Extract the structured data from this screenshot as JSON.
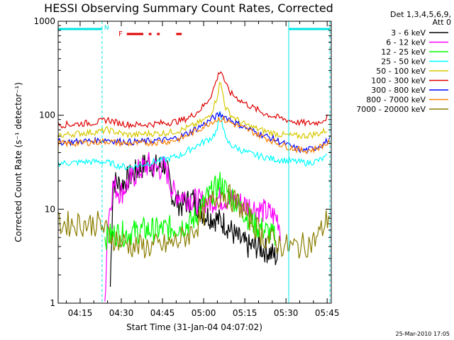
{
  "chart_data": {
    "type": "line",
    "title": "HESSI Observing Summary Count Rates, Corrected",
    "xlabel": "Start Time (31-Jan-04 04:07:02)",
    "ylabel": "Corrected Count Rate (s⁻¹ detector⁻¹)",
    "yscale": "log",
    "ylim": [
      1,
      1000
    ],
    "xlim_minutes": [
      7.0,
      106.5
    ],
    "xticks": [
      {
        "label": "04:15",
        "m": 15
      },
      {
        "label": "04:30",
        "m": 30
      },
      {
        "label": "04:45",
        "m": 45
      },
      {
        "label": "05:00",
        "m": 60
      },
      {
        "label": "05:15",
        "m": 75
      },
      {
        "label": "05:30",
        "m": 90
      },
      {
        "label": "05:45",
        "m": 105
      }
    ],
    "yticks": [
      {
        "label": "1",
        "v": 1
      },
      {
        "label": "10",
        "v": 10
      },
      {
        "label": "100",
        "v": 100
      },
      {
        "label": "1000",
        "v": 1000
      }
    ],
    "legend_placement": "right",
    "legend_header": [
      "Det 1,3,4,5,6,9,",
      "Att 0"
    ],
    "series": [
      {
        "name": "3 - 6 keV",
        "color": "#000000",
        "points": [
          [
            26,
            1.5
          ],
          [
            27,
            20
          ],
          [
            30,
            18
          ],
          [
            33,
            22
          ],
          [
            36,
            26
          ],
          [
            40,
            32
          ],
          [
            43,
            28
          ],
          [
            46,
            30
          ],
          [
            49,
            13
          ],
          [
            52,
            11
          ],
          [
            56,
            13
          ],
          [
            60,
            9
          ],
          [
            64,
            8
          ],
          [
            68,
            7
          ],
          [
            72,
            5
          ],
          [
            76,
            4
          ],
          [
            80,
            4
          ],
          [
            84,
            3.5
          ],
          [
            87,
            3
          ]
        ]
      },
      {
        "name": "6 - 12 keV",
        "color": "#ff00ff",
        "points": [
          [
            24,
            1
          ],
          [
            25,
            7
          ],
          [
            27,
            18
          ],
          [
            30,
            15
          ],
          [
            33,
            20
          ],
          [
            36,
            25
          ],
          [
            40,
            30
          ],
          [
            43,
            27
          ],
          [
            46,
            28
          ],
          [
            49,
            15
          ],
          [
            52,
            14
          ],
          [
            55,
            13
          ],
          [
            58,
            12
          ],
          [
            62,
            12
          ],
          [
            65,
            13
          ],
          [
            68,
            13
          ],
          [
            72,
            12
          ],
          [
            76,
            11
          ],
          [
            80,
            10
          ],
          [
            84,
            9
          ],
          [
            87,
            8
          ],
          [
            88,
            6
          ]
        ]
      },
      {
        "name": "12 - 25 keV",
        "color": "#00ff00",
        "points": [
          [
            24,
            5
          ],
          [
            28,
            5.5
          ],
          [
            32,
            5.5
          ],
          [
            38,
            6
          ],
          [
            44,
            6
          ],
          [
            50,
            6.5
          ],
          [
            55,
            7
          ],
          [
            58,
            9
          ],
          [
            61,
            13
          ],
          [
            64,
            16
          ],
          [
            66,
            19
          ],
          [
            68,
            16
          ],
          [
            71,
            13
          ],
          [
            74,
            10
          ],
          [
            78,
            7
          ],
          [
            82,
            6
          ],
          [
            84,
            5.5
          ],
          [
            86,
            5
          ]
        ]
      },
      {
        "name": "25 - 50 keV",
        "color": "#00ffff",
        "points": [
          [
            7,
            31
          ],
          [
            12,
            31
          ],
          [
            17,
            32
          ],
          [
            22,
            32
          ],
          [
            26,
            31
          ],
          [
            29,
            29
          ],
          [
            32,
            28
          ],
          [
            36,
            29
          ],
          [
            40,
            31
          ],
          [
            44,
            33
          ],
          [
            48,
            35
          ],
          [
            52,
            38
          ],
          [
            56,
            45
          ],
          [
            60,
            52
          ],
          [
            63,
            58
          ],
          [
            65,
            70
          ],
          [
            66,
            112
          ],
          [
            67,
            80
          ],
          [
            68,
            55
          ],
          [
            70,
            48
          ],
          [
            74,
            42
          ],
          [
            78,
            38
          ],
          [
            82,
            36
          ],
          [
            86,
            34
          ],
          [
            90,
            33
          ],
          [
            94,
            32
          ],
          [
            98,
            31
          ],
          [
            102,
            33
          ],
          [
            105,
            36
          ]
        ]
      },
      {
        "name": "50 - 100 keV",
        "color": "#d8c800",
        "points": [
          [
            7,
            61
          ],
          [
            12,
            63
          ],
          [
            17,
            65
          ],
          [
            22,
            67
          ],
          [
            25,
            70
          ],
          [
            28,
            66
          ],
          [
            32,
            62
          ],
          [
            36,
            62
          ],
          [
            40,
            64
          ],
          [
            44,
            64
          ],
          [
            48,
            66
          ],
          [
            52,
            70
          ],
          [
            55,
            75
          ],
          [
            58,
            82
          ],
          [
            61,
            92
          ],
          [
            63,
            110
          ],
          [
            65,
            160
          ],
          [
            66,
            230
          ],
          [
            67,
            170
          ],
          [
            68,
            120
          ],
          [
            70,
            100
          ],
          [
            74,
            82
          ],
          [
            78,
            74
          ],
          [
            82,
            68
          ],
          [
            86,
            64
          ],
          [
            90,
            61
          ],
          [
            94,
            60
          ],
          [
            98,
            61
          ],
          [
            102,
            64
          ],
          [
            105,
            70
          ]
        ]
      },
      {
        "name": "100 - 300 keV",
        "color": "#e00000",
        "points": [
          [
            7,
            79
          ],
          [
            12,
            80
          ],
          [
            17,
            82
          ],
          [
            22,
            85
          ],
          [
            25,
            90
          ],
          [
            28,
            84
          ],
          [
            32,
            80
          ],
          [
            36,
            79
          ],
          [
            40,
            80
          ],
          [
            44,
            82
          ],
          [
            48,
            84
          ],
          [
            52,
            88
          ],
          [
            55,
            96
          ],
          [
            58,
            110
          ],
          [
            61,
            135
          ],
          [
            63,
            170
          ],
          [
            65,
            250
          ],
          [
            66,
            305
          ],
          [
            67,
            270
          ],
          [
            68,
            210
          ],
          [
            70,
            170
          ],
          [
            74,
            140
          ],
          [
            78,
            120
          ],
          [
            82,
            105
          ],
          [
            86,
            96
          ],
          [
            90,
            90
          ],
          [
            94,
            84
          ],
          [
            98,
            82
          ],
          [
            102,
            84
          ],
          [
            105,
            95
          ]
        ]
      },
      {
        "name": "300 - 800 keV",
        "color": "#0000ff",
        "points": [
          [
            7,
            52
          ],
          [
            12,
            52
          ],
          [
            17,
            53
          ],
          [
            22,
            54
          ],
          [
            25,
            55
          ],
          [
            28,
            53
          ],
          [
            32,
            52
          ],
          [
            36,
            52
          ],
          [
            40,
            53
          ],
          [
            44,
            54
          ],
          [
            48,
            55
          ],
          [
            52,
            60
          ],
          [
            55,
            66
          ],
          [
            58,
            74
          ],
          [
            61,
            83
          ],
          [
            63,
            92
          ],
          [
            66,
            102
          ],
          [
            69,
            93
          ],
          [
            72,
            82
          ],
          [
            76,
            72
          ],
          [
            80,
            64
          ],
          [
            84,
            58
          ],
          [
            88,
            52
          ],
          [
            92,
            46
          ],
          [
            96,
            42
          ],
          [
            100,
            44
          ],
          [
            103,
            49
          ],
          [
            106,
            55
          ]
        ]
      },
      {
        "name": "800 - 7000 keV",
        "color": "#ff8000",
        "points": [
          [
            7,
            50
          ],
          [
            12,
            50
          ],
          [
            17,
            51
          ],
          [
            22,
            52
          ],
          [
            25,
            53
          ],
          [
            28,
            51
          ],
          [
            32,
            50
          ],
          [
            36,
            50
          ],
          [
            40,
            51
          ],
          [
            44,
            52
          ],
          [
            48,
            53
          ],
          [
            52,
            57
          ],
          [
            55,
            63
          ],
          [
            58,
            70
          ],
          [
            61,
            79
          ],
          [
            63,
            86
          ],
          [
            66,
            92
          ],
          [
            69,
            86
          ],
          [
            72,
            78
          ],
          [
            76,
            70
          ],
          [
            80,
            62
          ],
          [
            84,
            55
          ],
          [
            88,
            49
          ],
          [
            92,
            45
          ],
          [
            96,
            42
          ],
          [
            100,
            43
          ],
          [
            103,
            47
          ],
          [
            106,
            52
          ]
        ]
      },
      {
        "name": "7000 - 20000 keV",
        "color": "#8b7d00",
        "points": [
          [
            7,
            7
          ],
          [
            15,
            7
          ],
          [
            22,
            7
          ],
          [
            24,
            6
          ],
          [
            27,
            5
          ],
          [
            30,
            4.5
          ],
          [
            35,
            4
          ],
          [
            40,
            4
          ],
          [
            45,
            4
          ],
          [
            50,
            4.5
          ],
          [
            55,
            5.5
          ],
          [
            58,
            7
          ],
          [
            61,
            10
          ],
          [
            64,
            13
          ],
          [
            67,
            15
          ],
          [
            70,
            13
          ],
          [
            73,
            11
          ],
          [
            76,
            8.5
          ],
          [
            79,
            6.5
          ],
          [
            82,
            5
          ],
          [
            86,
            4.5
          ],
          [
            90,
            4
          ],
          [
            95,
            4
          ],
          [
            100,
            4.5
          ],
          [
            103,
            6
          ],
          [
            106,
            9
          ]
        ]
      }
    ],
    "annotations": {
      "marker_n": "N",
      "marker_f": "F",
      "night_bars": [
        [
          7,
          23
        ],
        [
          91,
          106
        ]
      ],
      "dashed_verticals": [
        23,
        106
      ],
      "solid_verticals": [
        91
      ],
      "flare_dots": [
        32,
        38,
        40,
        41,
        43,
        44,
        50,
        52
      ]
    }
  },
  "footer": {
    "timestamp": "25-Mar-2010 17:05"
  }
}
